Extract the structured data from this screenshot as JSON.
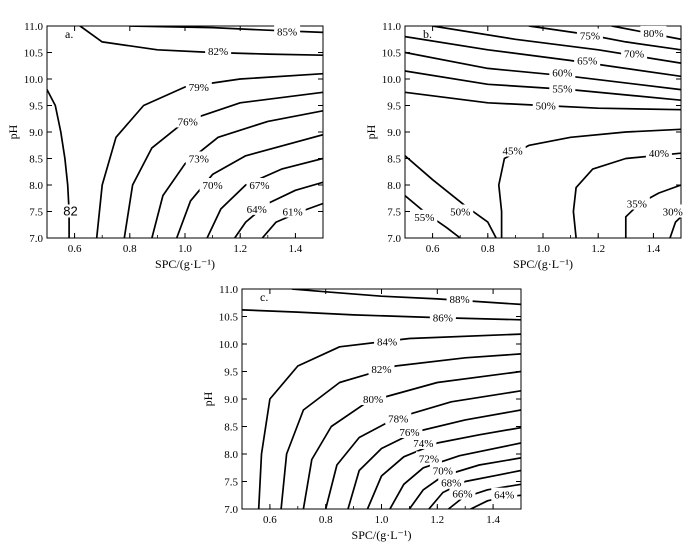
{
  "chart_data": [
    {
      "type": "contour",
      "panel_label": "a.",
      "xlabel": "SPC/(g·L⁻¹)",
      "ylabel": "pH",
      "xlim": [
        0.5,
        1.5
      ],
      "ylim": [
        7.0,
        11.0
      ],
      "xticks": [
        "0.6",
        "0.8",
        "1.0",
        "1.2",
        "1.4"
      ],
      "yticks": [
        "7.0",
        "7.5",
        "8.0",
        "8.5",
        "9.0",
        "9.5",
        "10.0",
        "10.5",
        "11.0"
      ],
      "grid": false,
      "contours": [
        {
          "label": "82",
          "points": [
            [
              0.5,
              9.8
            ],
            [
              0.53,
              9.5
            ],
            [
              0.55,
              9.0
            ],
            [
              0.565,
              8.5
            ],
            [
              0.575,
              8.0
            ],
            [
              0.58,
              7.5
            ],
            [
              0.58,
              7.0
            ]
          ],
          "label_at": [
            0.585,
            7.5
          ]
        },
        {
          "label": "85%",
          "points": [
            [
              0.8,
              11.0
            ],
            [
              1.1,
              10.97
            ],
            [
              1.3,
              10.92
            ],
            [
              1.5,
              10.88
            ]
          ],
          "label_at": [
            1.37,
            10.9
          ]
        },
        {
          "label": "82%",
          "points": [
            [
              0.62,
              11.0
            ],
            [
              0.7,
              10.7
            ],
            [
              0.9,
              10.55
            ],
            [
              1.1,
              10.5
            ],
            [
              1.3,
              10.47
            ],
            [
              1.5,
              10.45
            ]
          ],
          "label_at": [
            1.12,
            10.53
          ]
        },
        {
          "label": "79%",
          "points": [
            [
              0.68,
              7.0
            ],
            [
              0.7,
              8.0
            ],
            [
              0.75,
              8.9
            ],
            [
              0.85,
              9.5
            ],
            [
              1.0,
              9.85
            ],
            [
              1.2,
              10.0
            ],
            [
              1.5,
              10.1
            ]
          ],
          "label_at": [
            1.05,
            9.85
          ]
        },
        {
          "label": "76%",
          "points": [
            [
              0.78,
              7.0
            ],
            [
              0.81,
              8.0
            ],
            [
              0.88,
              8.7
            ],
            [
              1.0,
              9.2
            ],
            [
              1.2,
              9.55
            ],
            [
              1.5,
              9.75
            ]
          ],
          "label_at": [
            1.01,
            9.2
          ]
        },
        {
          "label": "73%",
          "points": [
            [
              0.88,
              7.0
            ],
            [
              0.92,
              7.8
            ],
            [
              1.0,
              8.4
            ],
            [
              1.12,
              8.9
            ],
            [
              1.3,
              9.2
            ],
            [
              1.5,
              9.4
            ]
          ],
          "label_at": [
            1.05,
            8.5
          ]
        },
        {
          "label": "70%",
          "points": [
            [
              0.97,
              7.0
            ],
            [
              1.02,
              7.7
            ],
            [
              1.1,
              8.2
            ],
            [
              1.22,
              8.55
            ],
            [
              1.5,
              8.95
            ]
          ],
          "label_at": [
            1.1,
            8.0
          ]
        },
        {
          "label": "67%",
          "points": [
            [
              1.08,
              7.0
            ],
            [
              1.13,
              7.55
            ],
            [
              1.22,
              8.0
            ],
            [
              1.35,
              8.3
            ],
            [
              1.5,
              8.5
            ]
          ],
          "label_at": [
            1.27,
            8.0
          ]
        },
        {
          "label": "64%",
          "points": [
            [
              1.18,
              7.0
            ],
            [
              1.22,
              7.3
            ],
            [
              1.3,
              7.65
            ],
            [
              1.4,
              7.9
            ],
            [
              1.5,
              8.05
            ]
          ],
          "label_at": [
            1.26,
            7.55
          ]
        },
        {
          "label": "61%",
          "points": [
            [
              1.28,
              7.0
            ],
            [
              1.33,
              7.3
            ],
            [
              1.42,
              7.5
            ],
            [
              1.5,
              7.65
            ]
          ],
          "label_at": [
            1.39,
            7.5
          ]
        }
      ]
    },
    {
      "type": "contour",
      "panel_label": "b.",
      "xlabel": "SPC/(g·L⁻¹)",
      "ylabel": "pH",
      "xlim": [
        0.5,
        1.5
      ],
      "ylim": [
        7.0,
        11.0
      ],
      "xticks": [
        "0.6",
        "0.8",
        "1.0",
        "1.2",
        "1.4"
      ],
      "yticks": [
        "7.0",
        "7.5",
        "8.0",
        "8.5",
        "9.0",
        "9.5",
        "10.0",
        "10.5",
        "11.0"
      ],
      "grid": false,
      "contours": [
        {
          "label": "80%",
          "points": [
            [
              1.25,
              11.0
            ],
            [
              1.4,
              10.85
            ],
            [
              1.5,
              10.75
            ]
          ],
          "label_at": [
            1.4,
            10.87
          ]
        },
        {
          "label": "75%",
          "points": [
            [
              0.95,
              11.0
            ],
            [
              1.15,
              10.85
            ],
            [
              1.3,
              10.7
            ],
            [
              1.5,
              10.55
            ]
          ],
          "label_at": [
            1.17,
            10.82
          ]
        },
        {
          "label": "70%",
          "points": [
            [
              0.6,
              11.0
            ],
            [
              0.9,
              10.75
            ],
            [
              1.2,
              10.55
            ],
            [
              1.5,
              10.3
            ]
          ],
          "label_at": [
            1.33,
            10.48
          ]
        },
        {
          "label": "65%",
          "points": [
            [
              0.5,
              10.8
            ],
            [
              0.8,
              10.55
            ],
            [
              1.1,
              10.35
            ],
            [
              1.5,
              10.05
            ]
          ],
          "label_at": [
            1.16,
            10.35
          ]
        },
        {
          "label": "60%",
          "points": [
            [
              0.5,
              10.5
            ],
            [
              0.8,
              10.2
            ],
            [
              1.1,
              10.05
            ],
            [
              1.5,
              9.8
            ]
          ],
          "label_at": [
            1.07,
            10.12
          ]
        },
        {
          "label": "55%",
          "points": [
            [
              0.5,
              10.15
            ],
            [
              0.8,
              9.9
            ],
            [
              1.1,
              9.8
            ],
            [
              1.5,
              9.6
            ]
          ],
          "label_at": [
            1.07,
            9.82
          ]
        },
        {
          "label": "50%",
          "points": [
            [
              0.5,
              9.75
            ],
            [
              0.8,
              9.55
            ],
            [
              1.0,
              9.5
            ],
            [
              1.2,
              9.45
            ],
            [
              1.5,
              9.42
            ]
          ],
          "label_at": [
            1.01,
            9.5
          ]
        },
        {
          "label": "45%",
          "points": [
            [
              0.85,
              7.0
            ],
            [
              0.85,
              7.5
            ],
            [
              0.84,
              8.0
            ],
            [
              0.86,
              8.5
            ],
            [
              0.95,
              8.75
            ],
            [
              1.1,
              8.9
            ],
            [
              1.3,
              9.0
            ],
            [
              1.5,
              9.05
            ]
          ],
          "label_at": [
            0.89,
            8.65
          ]
        },
        {
          "label": "40%",
          "points": [
            [
              1.12,
              7.0
            ],
            [
              1.11,
              7.5
            ],
            [
              1.12,
              7.95
            ],
            [
              1.18,
              8.3
            ],
            [
              1.3,
              8.5
            ],
            [
              1.5,
              8.6
            ]
          ],
          "label_at": [
            1.42,
            8.6
          ]
        },
        {
          "label": "35%",
          "points": [
            [
              1.3,
              7.0
            ],
            [
              1.3,
              7.4
            ],
            [
              1.35,
              7.65
            ],
            [
              1.42,
              7.85
            ],
            [
              1.5,
              8.0
            ]
          ],
          "label_at": [
            1.34,
            7.65
          ]
        },
        {
          "label": "30%",
          "points": [
            [
              1.46,
              7.0
            ],
            [
              1.48,
              7.3
            ],
            [
              1.5,
              7.4
            ]
          ],
          "label_at": [
            1.47,
            7.5
          ]
        },
        {
          "label": "50%",
          "points": [
            [
              0.5,
              8.55
            ],
            [
              0.6,
              8.1
            ],
            [
              0.72,
              7.6
            ],
            [
              0.8,
              7.3
            ],
            [
              0.83,
              7.0
            ]
          ],
          "label_at": [
            0.7,
            7.5
          ]
        },
        {
          "label": "55%",
          "points": [
            [
              0.5,
              7.8
            ],
            [
              0.58,
              7.45
            ],
            [
              0.65,
              7.2
            ],
            [
              0.7,
              7.0
            ]
          ],
          "label_at": [
            0.57,
            7.4
          ]
        }
      ]
    },
    {
      "type": "contour",
      "panel_label": "c.",
      "xlabel": "SPC/(g·L⁻¹)",
      "ylabel": "pH",
      "xlim": [
        0.5,
        1.5
      ],
      "ylim": [
        7.0,
        11.0
      ],
      "xticks": [
        "0.6",
        "0.8",
        "1.0",
        "1.2",
        "1.4"
      ],
      "yticks": [
        "7.0",
        "7.5",
        "8.0",
        "8.5",
        "9.0",
        "9.5",
        "10.0",
        "10.5",
        "11.0"
      ],
      "grid": false,
      "contours": [
        {
          "label": "88%",
          "points": [
            [
              0.68,
              11.0
            ],
            [
              0.8,
              10.95
            ],
            [
              1.0,
              10.87
            ],
            [
              1.2,
              10.82
            ],
            [
              1.5,
              10.72
            ]
          ],
          "label_at": [
            1.28,
            10.82
          ]
        },
        {
          "label": "86%",
          "points": [
            [
              0.5,
              10.62
            ],
            [
              0.7,
              10.58
            ],
            [
              0.9,
              10.53
            ],
            [
              1.2,
              10.48
            ],
            [
              1.5,
              10.44
            ]
          ],
          "label_at": [
            1.22,
            10.48
          ]
        },
        {
          "label": "84%",
          "points": [
            [
              0.56,
              7.0
            ],
            [
              0.57,
              8.0
            ],
            [
              0.6,
              9.0
            ],
            [
              0.7,
              9.6
            ],
            [
              0.85,
              9.95
            ],
            [
              1.1,
              10.1
            ],
            [
              1.5,
              10.18
            ]
          ],
          "label_at": [
            1.02,
            10.05
          ]
        },
        {
          "label": "82%",
          "points": [
            [
              0.64,
              7.0
            ],
            [
              0.66,
              8.0
            ],
            [
              0.72,
              8.8
            ],
            [
              0.85,
              9.3
            ],
            [
              1.05,
              9.6
            ],
            [
              1.3,
              9.75
            ],
            [
              1.5,
              9.82
            ]
          ],
          "label_at": [
            1.0,
            9.55
          ]
        },
        {
          "label": "80%",
          "points": [
            [
              0.72,
              7.0
            ],
            [
              0.75,
              7.9
            ],
            [
              0.82,
              8.5
            ],
            [
              0.95,
              8.95
            ],
            [
              1.2,
              9.3
            ],
            [
              1.5,
              9.5
            ]
          ],
          "label_at": [
            0.97,
            9.0
          ]
        },
        {
          "label": "78%",
          "points": [
            [
              0.8,
              7.0
            ],
            [
              0.84,
              7.8
            ],
            [
              0.92,
              8.3
            ],
            [
              1.05,
              8.65
            ],
            [
              1.25,
              8.95
            ],
            [
              1.5,
              9.15
            ]
          ],
          "label_at": [
            1.06,
            8.65
          ]
        },
        {
          "label": "76%",
          "points": [
            [
              0.88,
              7.0
            ],
            [
              0.92,
              7.7
            ],
            [
              1.0,
              8.1
            ],
            [
              1.12,
              8.4
            ],
            [
              1.3,
              8.62
            ],
            [
              1.5,
              8.8
            ]
          ],
          "label_at": [
            1.1,
            8.4
          ]
        },
        {
          "label": "74%",
          "points": [
            [
              0.95,
              7.0
            ],
            [
              1.0,
              7.6
            ],
            [
              1.08,
              7.95
            ],
            [
              1.2,
              8.2
            ],
            [
              1.35,
              8.35
            ],
            [
              1.5,
              8.48
            ]
          ],
          "label_at": [
            1.15,
            8.2
          ]
        },
        {
          "label": "72%",
          "points": [
            [
              1.03,
              7.0
            ],
            [
              1.08,
              7.45
            ],
            [
              1.15,
              7.75
            ],
            [
              1.28,
              7.97
            ],
            [
              1.5,
              8.2
            ]
          ],
          "label_at": [
            1.17,
            7.92
          ]
        },
        {
          "label": "70%",
          "points": [
            [
              1.1,
              7.0
            ],
            [
              1.15,
              7.35
            ],
            [
              1.22,
              7.6
            ],
            [
              1.35,
              7.8
            ],
            [
              1.5,
              7.93
            ]
          ],
          "label_at": [
            1.22,
            7.7
          ]
        },
        {
          "label": "68%",
          "points": [
            [
              1.17,
              7.0
            ],
            [
              1.22,
              7.3
            ],
            [
              1.3,
              7.5
            ],
            [
              1.42,
              7.62
            ],
            [
              1.5,
              7.7
            ]
          ],
          "label_at": [
            1.25,
            7.48
          ]
        },
        {
          "label": "66%",
          "points": [
            [
              1.24,
              7.0
            ],
            [
              1.29,
              7.2
            ],
            [
              1.38,
              7.35
            ],
            [
              1.5,
              7.45
            ]
          ],
          "label_at": [
            1.29,
            7.28
          ]
        },
        {
          "label": "64%",
          "points": [
            [
              1.32,
              7.0
            ],
            [
              1.38,
              7.15
            ],
            [
              1.44,
              7.22
            ],
            [
              1.5,
              7.25
            ]
          ],
          "label_at": [
            1.44,
            7.26
          ]
        }
      ]
    }
  ]
}
